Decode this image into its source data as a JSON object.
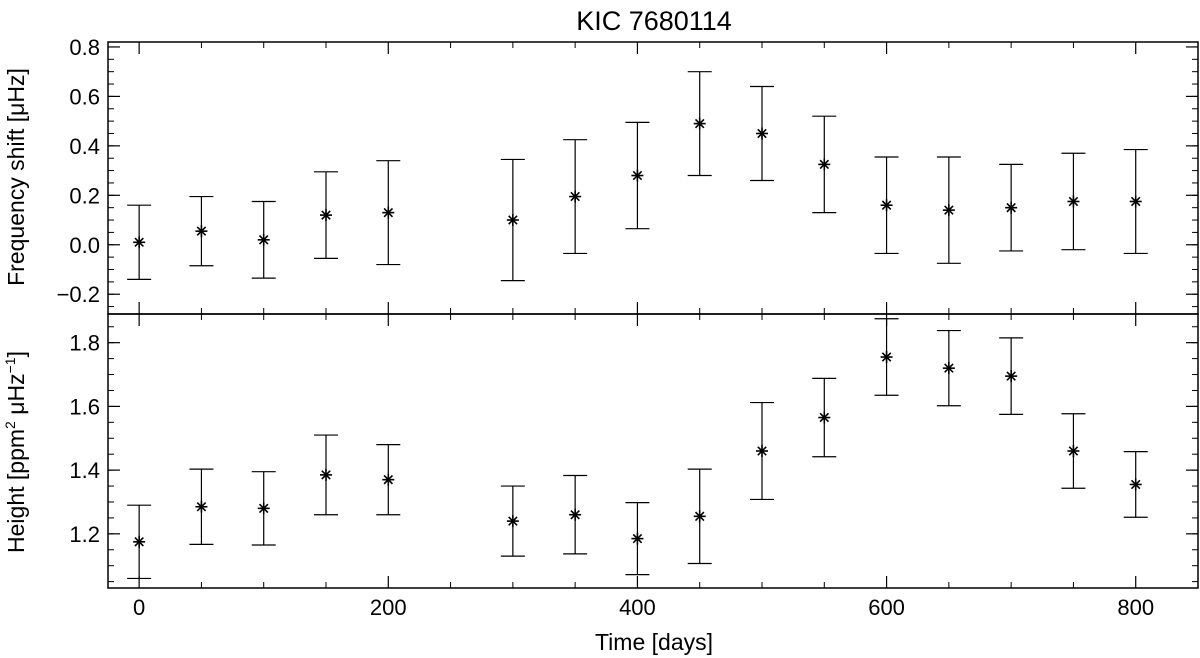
{
  "chart_data": [
    {
      "type": "scatter",
      "title": "KIC 7680114",
      "xlabel": "",
      "ylabel_parts": [
        "Frequency shift [",
        "μ",
        "Hz]"
      ],
      "xlim": [
        -25,
        850
      ],
      "ylim": [
        -0.28,
        0.82
      ],
      "yticks": [
        -0.2,
        0.0,
        0.2,
        0.4,
        0.6,
        0.8
      ],
      "ytick_labels": [
        "−0.2",
        "0.0",
        "0.2",
        "0.4",
        "0.6",
        "0.8"
      ],
      "marker": "asterisk",
      "error_bars": true,
      "points": [
        {
          "x": 0,
          "y": 0.01,
          "err": 0.15
        },
        {
          "x": 50,
          "y": 0.055,
          "err": 0.14
        },
        {
          "x": 100,
          "y": 0.02,
          "err": 0.155
        },
        {
          "x": 150,
          "y": 0.12,
          "err": 0.175
        },
        {
          "x": 200,
          "y": 0.13,
          "err": 0.21
        },
        {
          "x": 300,
          "y": 0.1,
          "err": 0.245
        },
        {
          "x": 350,
          "y": 0.195,
          "err": 0.23
        },
        {
          "x": 400,
          "y": 0.28,
          "err": 0.215
        },
        {
          "x": 450,
          "y": 0.49,
          "err": 0.21
        },
        {
          "x": 500,
          "y": 0.45,
          "err": 0.19
        },
        {
          "x": 550,
          "y": 0.325,
          "err": 0.195
        },
        {
          "x": 600,
          "y": 0.16,
          "err": 0.195
        },
        {
          "x": 650,
          "y": 0.14,
          "err": 0.215
        },
        {
          "x": 700,
          "y": 0.15,
          "err": 0.175
        },
        {
          "x": 750,
          "y": 0.175,
          "err": 0.195
        },
        {
          "x": 800,
          "y": 0.175,
          "err": 0.21
        }
      ]
    },
    {
      "type": "scatter",
      "title": "",
      "xlabel": "Time [days]",
      "ylabel_parts": [
        "Height [ppm",
        "2",
        " μHz",
        "−1",
        "]"
      ],
      "xlim": [
        -25,
        850
      ],
      "ylim": [
        1.03,
        1.89
      ],
      "xticks": [
        0,
        200,
        400,
        600,
        800
      ],
      "xtick_labels": [
        "0",
        "200",
        "400",
        "600",
        "800"
      ],
      "yticks": [
        1.2,
        1.4,
        1.6,
        1.8
      ],
      "ytick_labels": [
        "1.2",
        "1.4",
        "1.6",
        "1.8"
      ],
      "marker": "asterisk",
      "error_bars": true,
      "points": [
        {
          "x": 0,
          "y": 1.175,
          "err": 0.115
        },
        {
          "x": 50,
          "y": 1.285,
          "err": 0.118
        },
        {
          "x": 100,
          "y": 1.28,
          "err": 0.115
        },
        {
          "x": 150,
          "y": 1.385,
          "err": 0.125
        },
        {
          "x": 200,
          "y": 1.37,
          "err": 0.11
        },
        {
          "x": 300,
          "y": 1.24,
          "err": 0.11
        },
        {
          "x": 350,
          "y": 1.26,
          "err": 0.123
        },
        {
          "x": 400,
          "y": 1.185,
          "err": 0.113
        },
        {
          "x": 450,
          "y": 1.255,
          "err": 0.148
        },
        {
          "x": 500,
          "y": 1.46,
          "err": 0.152
        },
        {
          "x": 550,
          "y": 1.565,
          "err": 0.123
        },
        {
          "x": 600,
          "y": 1.755,
          "err": 0.12
        },
        {
          "x": 650,
          "y": 1.72,
          "err": 0.118
        },
        {
          "x": 700,
          "y": 1.695,
          "err": 0.12
        },
        {
          "x": 750,
          "y": 1.46,
          "err": 0.117
        },
        {
          "x": 800,
          "y": 1.355,
          "err": 0.103
        }
      ]
    }
  ]
}
